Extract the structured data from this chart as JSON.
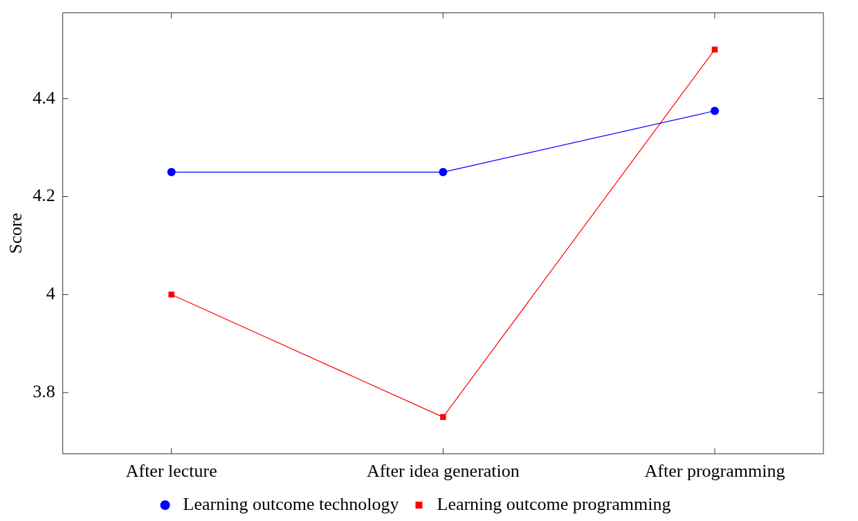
{
  "chart_data": {
    "type": "line",
    "ylabel": "Score",
    "categories": [
      "After lecture",
      "After idea generation",
      "After programming"
    ],
    "series": [
      {
        "name": "Learning outcome technology",
        "color": "#0000ff",
        "marker": "circle",
        "values": [
          4.25,
          4.25,
          4.375
        ]
      },
      {
        "name": "Learning outcome programming",
        "color": "#ff0000",
        "marker": "square",
        "values": [
          4.0,
          3.75,
          4.5
        ]
      }
    ],
    "ylim": [
      3.675,
      4.575
    ],
    "yticks": [
      3.8,
      {
        "value": 4,
        "label": "4"
      },
      4.2,
      4.4
    ],
    "grid": false,
    "legend": "bottom"
  }
}
